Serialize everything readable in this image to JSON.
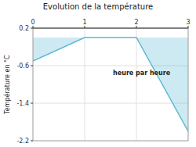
{
  "chart_data": {
    "type": "line",
    "title": "Evolution de la température",
    "ylabel": "Température en °C",
    "annotation": "heure par heure",
    "x": [
      0,
      1,
      2,
      3
    ],
    "values": [
      -0.5,
      0.0,
      0.0,
      -2.0
    ],
    "color": "#5bb8d4",
    "xlim": [
      0,
      3
    ],
    "ylim": [
      -2.2,
      0.2
    ],
    "xticks": [
      0,
      1,
      2,
      3
    ],
    "yticks": [
      0.2,
      -0.6,
      -1.4,
      -2.2
    ],
    "grid": true
  }
}
